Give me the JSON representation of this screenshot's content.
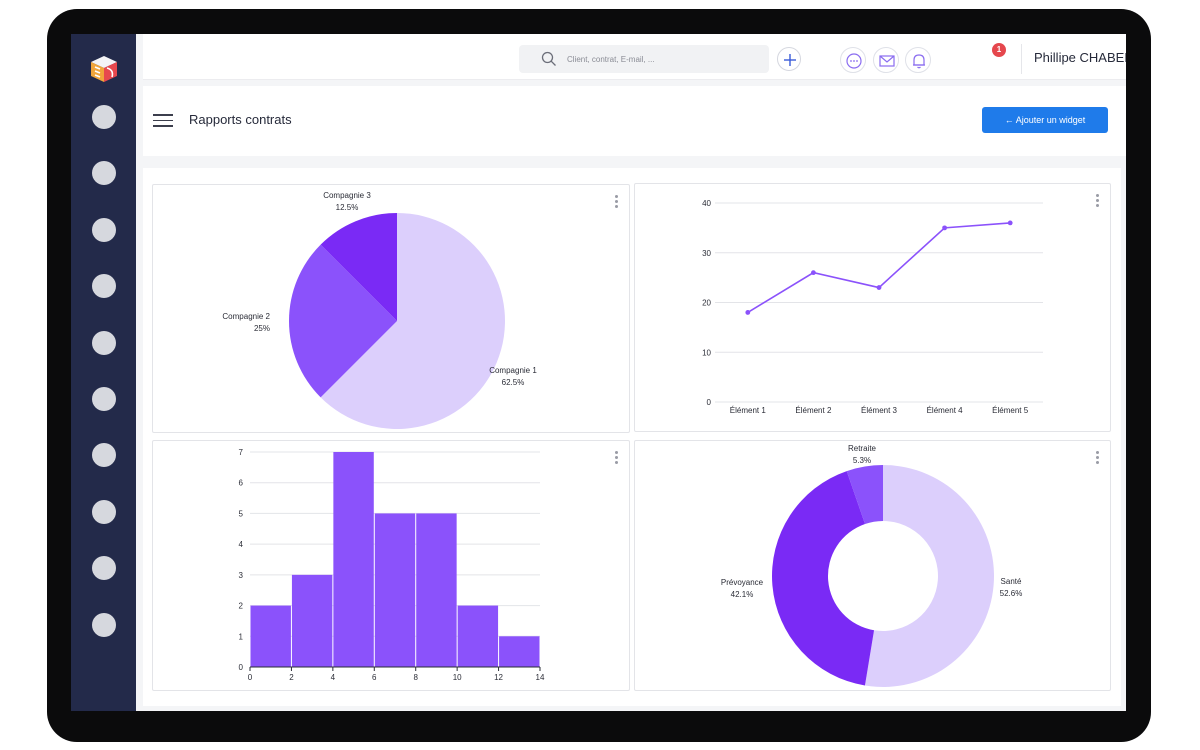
{
  "topbar": {
    "search_placeholder": "Client, contrat, E-mail, ...",
    "notification_count": "1",
    "user_name": "Phillipe CHABERT"
  },
  "header": {
    "title": "Rapports contrats",
    "add_widget_label": "←  Ajouter un widget"
  },
  "colors": {
    "sidebar": "#232a4a",
    "accent": "#1f7bea",
    "purple_dark": "#7a2af5",
    "purple_mid": "#8b52fb",
    "purple_light": "#dccffc"
  },
  "chart_data": [
    {
      "type": "pie",
      "slices": [
        {
          "label": "Compagnie 1",
          "pct_label": "62.5%",
          "value": 62.5,
          "color": "#dccffc"
        },
        {
          "label": "Compagnie 2",
          "pct_label": "25%",
          "value": 25,
          "color": "#8b52fb"
        },
        {
          "label": "Compagnie 3",
          "pct_label": "12.5%",
          "value": 12.5,
          "color": "#7a2af5"
        }
      ]
    },
    {
      "type": "line",
      "categories": [
        "Élément 1",
        "Élément 2",
        "Élément 3",
        "Élément 4",
        "Élément 5"
      ],
      "values": [
        18,
        26,
        23,
        35,
        36
      ],
      "ylim": [
        0,
        40
      ],
      "yticks": [
        "0",
        "10",
        "20",
        "30",
        "40"
      ],
      "color": "#8b52fb",
      "grid": true
    },
    {
      "type": "bar",
      "bins": [
        [
          0,
          2
        ],
        [
          2,
          4
        ],
        [
          4,
          6
        ],
        [
          6,
          8
        ],
        [
          8,
          10
        ],
        [
          10,
          12
        ],
        [
          12,
          14
        ]
      ],
      "values": [
        2,
        3,
        7,
        5,
        5,
        2,
        1
      ],
      "xticks": [
        "0",
        "2",
        "4",
        "6",
        "8",
        "10",
        "12",
        "14"
      ],
      "yticks": [
        "0",
        "1",
        "2",
        "3",
        "4",
        "5",
        "6",
        "7"
      ],
      "ylim": [
        0,
        7
      ],
      "color": "#8b52fb",
      "grid": true
    },
    {
      "type": "pie",
      "donut": true,
      "slices": [
        {
          "label": "Santé",
          "pct_label": "52.6%",
          "value": 52.6,
          "color": "#dccffc"
        },
        {
          "label": "Prévoyance",
          "pct_label": "42.1%",
          "value": 42.1,
          "color": "#7a2af5"
        },
        {
          "label": "Retraite",
          "pct_label": "5.3%",
          "value": 5.3,
          "color": "#8b52fb"
        }
      ]
    }
  ]
}
